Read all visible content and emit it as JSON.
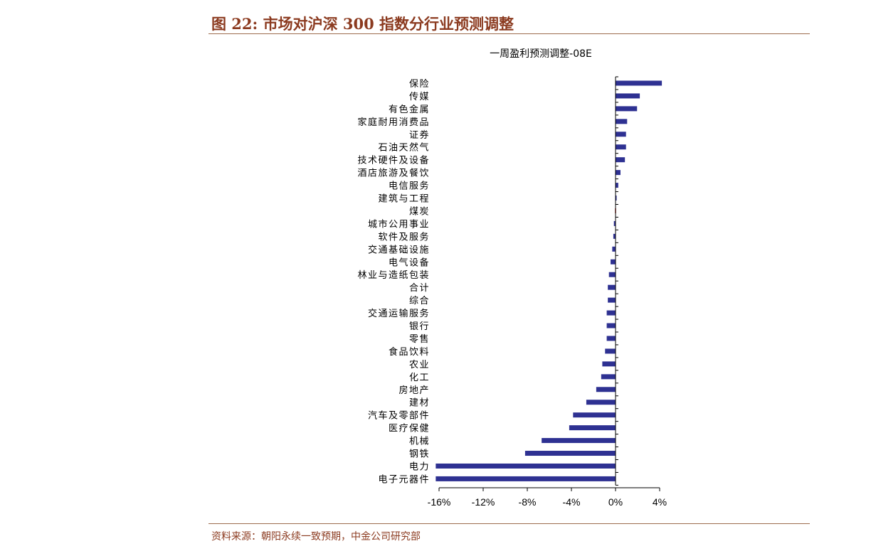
{
  "header": {
    "title": "图 22: 市场对沪深 300 指数分行业预测调整"
  },
  "footer": {
    "source": "资料来源：朝阳永续一致预期，中金公司研究部"
  },
  "colors": {
    "bar": "#2e3192",
    "highlight": "#c0392b",
    "accent": "#8b3a1f"
  },
  "chart_data": {
    "type": "bar",
    "orientation": "horizontal",
    "title": "一周盈利预测调整-08E",
    "categories": [
      "保险",
      "传媒",
      "有色金属",
      "家庭耐用消费品",
      "证券",
      "石油天然气",
      "技术硬件及设备",
      "酒店旅游及餐饮",
      "电信服务",
      "建筑与工程",
      "煤炭",
      "城市公用事业",
      "软件及服务",
      "交通基础设施",
      "电气设备",
      "林业与造纸包装",
      "合计",
      "综合",
      "交通运输服务",
      "银行",
      "零售",
      "食品饮料",
      "农业",
      "化工",
      "房地产",
      "建材",
      "汽车及零部件",
      "医疗保健",
      "机械",
      "钢铁",
      "电力",
      "电子元器件"
    ],
    "values": [
      4.2,
      2.2,
      1.95,
      1.05,
      0.95,
      0.95,
      0.85,
      0.45,
      0.25,
      0.1,
      -0.05,
      -0.15,
      -0.2,
      -0.3,
      -0.45,
      -0.6,
      -0.7,
      -0.7,
      -0.8,
      -0.8,
      -0.8,
      -0.95,
      -1.2,
      -1.3,
      -1.75,
      -2.65,
      -3.85,
      -4.2,
      -6.7,
      -8.2,
      -16.3,
      -16.3
    ],
    "highlight_category": "煤炭",
    "xlim": [
      -16,
      4
    ],
    "xticks": [
      "-16%",
      "-12%",
      "-8%",
      "-4%",
      "0%",
      "4%"
    ],
    "xtick_values": [
      -16,
      -12,
      -8,
      -4,
      0,
      4
    ],
    "grid": false,
    "legend": "none"
  }
}
